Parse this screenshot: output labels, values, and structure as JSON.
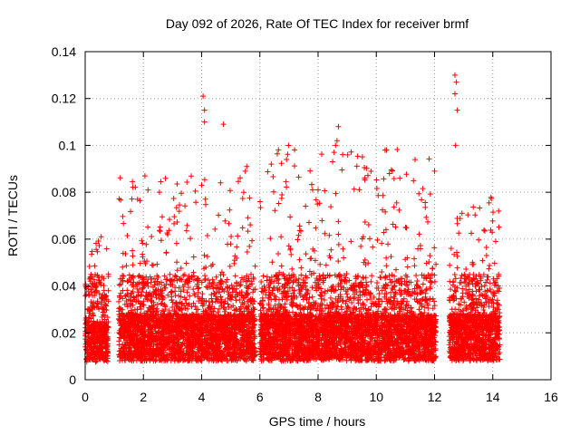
{
  "chart_data": {
    "type": "scatter",
    "title": "Day 092 of 2026, Rate Of TEC Index for receiver brmf",
    "xlabel": "GPS time / hours",
    "ylabel": "ROTI / TECUs",
    "xlim": [
      0,
      16
    ],
    "ylim": [
      0,
      0.14
    ],
    "xticks": [
      "0",
      "2",
      "4",
      "6",
      "8",
      "10",
      "12",
      "14",
      "16"
    ],
    "yticks": [
      "0",
      "0.02",
      "0.04",
      "0.06",
      "0.08",
      "0.1",
      "0.12",
      "0.14"
    ],
    "grid": true,
    "marker": "+",
    "color": "#ff0000",
    "segments": [
      {
        "start": 0.0,
        "end": 0.8,
        "base": 0.014,
        "peak": 0.06
      },
      {
        "start": 1.15,
        "end": 5.85,
        "base": 0.016,
        "peak": 0.09
      },
      {
        "start": 6.0,
        "end": 12.05,
        "base": 0.016,
        "peak": 0.1
      },
      {
        "start": 12.5,
        "end": 14.25,
        "base": 0.016,
        "peak": 0.08
      }
    ],
    "outliers": [
      {
        "x": 4.05,
        "y": 0.121
      },
      {
        "x": 4.1,
        "y": 0.115
      },
      {
        "x": 4.1,
        "y": 0.11
      },
      {
        "x": 4.75,
        "y": 0.109
      },
      {
        "x": 12.7,
        "y": 0.13
      },
      {
        "x": 12.75,
        "y": 0.127
      },
      {
        "x": 12.7,
        "y": 0.122
      },
      {
        "x": 12.78,
        "y": 0.115
      },
      {
        "x": 12.72,
        "y": 0.1
      },
      {
        "x": 8.7,
        "y": 0.108
      },
      {
        "x": 8.65,
        "y": 0.102
      },
      {
        "x": 8.6,
        "y": 0.1
      },
      {
        "x": 8.55,
        "y": 0.097
      },
      {
        "x": 8.5,
        "y": 0.093
      },
      {
        "x": 10.3,
        "y": 0.098
      },
      {
        "x": 10.35,
        "y": 0.098
      },
      {
        "x": 12.0,
        "y": 0.089
      },
      {
        "x": 1.8,
        "y": 0.077
      },
      {
        "x": 2.55,
        "y": 0.08
      },
      {
        "x": 4.65,
        "y": 0.084
      },
      {
        "x": 4.0,
        "y": 0.083
      },
      {
        "x": 5.55,
        "y": 0.091
      },
      {
        "x": 5.5,
        "y": 0.089
      },
      {
        "x": 8.0,
        "y": 0.081
      },
      {
        "x": 10.45,
        "y": 0.088
      },
      {
        "x": 14.2,
        "y": 0.072
      },
      {
        "x": 0.55,
        "y": 0.061
      }
    ]
  }
}
